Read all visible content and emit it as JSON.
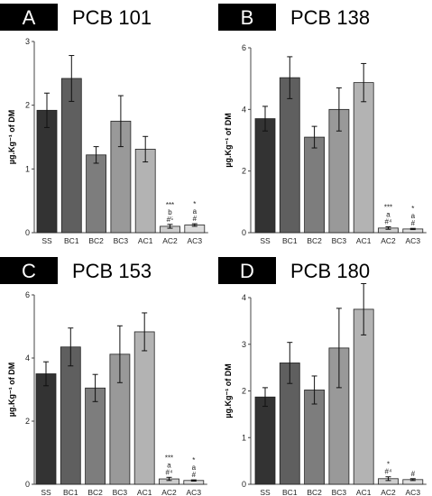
{
  "chart_data": [
    {
      "type": "bar",
      "panel_letter": "A",
      "title": "PCB 101",
      "ylabel": "µg.Kg⁻¹ of DM",
      "categories": [
        "SS",
        "BC1",
        "BC2",
        "BC3",
        "AC1",
        "AC2",
        "AC3"
      ],
      "values": [
        1.92,
        2.42,
        1.22,
        1.75,
        1.31,
        0.1,
        0.12
      ],
      "errors": [
        0.27,
        0.36,
        0.13,
        0.4,
        0.2,
        0.03,
        0.02
      ],
      "annotations": [
        [],
        [],
        [],
        [],
        [],
        [
          "***",
          "b",
          "#⁵"
        ],
        [
          "*",
          "a",
          "#"
        ]
      ],
      "ylim": [
        0,
        3
      ],
      "yticks": [
        "0",
        "1",
        "2",
        "3"
      ],
      "colors": [
        "#333333",
        "#5f5f5f",
        "#7d7d7d",
        "#999999",
        "#b3b3b3",
        "#cccccc",
        "#dcdcdc"
      ]
    },
    {
      "type": "bar",
      "panel_letter": "B",
      "title": "PCB 138",
      "ylabel": "µg.Kg⁻¹ of DM",
      "categories": [
        "SS",
        "BC1",
        "BC2",
        "BC3",
        "AC1",
        "AC2",
        "AC3"
      ],
      "values": [
        3.7,
        5.03,
        3.1,
        4.0,
        4.87,
        0.15,
        0.12
      ],
      "errors": [
        0.4,
        0.68,
        0.35,
        0.7,
        0.62,
        0.04,
        0.02
      ],
      "annotations": [
        [],
        [],
        [],
        [],
        [],
        [
          "***",
          "a",
          "#⁴"
        ],
        [
          "*",
          "a",
          "#"
        ]
      ],
      "ylim": [
        0,
        6
      ],
      "yticks": [
        "0",
        "2",
        "4",
        "6"
      ],
      "colors": [
        "#333333",
        "#5f5f5f",
        "#7d7d7d",
        "#999999",
        "#b3b3b3",
        "#cccccc",
        "#dcdcdc"
      ]
    },
    {
      "type": "bar",
      "panel_letter": "C",
      "title": "PCB 153",
      "ylabel": "µg.Kg⁻¹ of DM",
      "categories": [
        "SS",
        "BC1",
        "BC2",
        "BC3",
        "AC1",
        "AC2",
        "AC3"
      ],
      "values": [
        3.5,
        4.35,
        3.05,
        4.12,
        4.83,
        0.17,
        0.12
      ],
      "errors": [
        0.38,
        0.6,
        0.43,
        0.9,
        0.6,
        0.05,
        0.02
      ],
      "annotations": [
        [],
        [],
        [],
        [],
        [],
        [
          "***",
          "a",
          "#⁴"
        ],
        [
          "*",
          "a",
          "#"
        ]
      ],
      "ylim": [
        0,
        6
      ],
      "yticks": [
        "0",
        "2",
        "4",
        "6"
      ],
      "colors": [
        "#333333",
        "#5f5f5f",
        "#7d7d7d",
        "#999999",
        "#b3b3b3",
        "#cccccc",
        "#dcdcdc"
      ]
    },
    {
      "type": "bar",
      "panel_letter": "D",
      "title": "PCB 180",
      "ylabel": "µg.Kg⁻¹ of DM",
      "categories": [
        "SS",
        "BC1",
        "BC2",
        "BC3",
        "AC1",
        "AC2",
        "AC3"
      ],
      "values": [
        1.87,
        2.6,
        2.02,
        2.92,
        3.75,
        0.12,
        0.1
      ],
      "errors": [
        0.2,
        0.44,
        0.3,
        0.85,
        0.55,
        0.04,
        0.02
      ],
      "annotations": [
        [],
        [],
        [],
        [],
        [],
        [
          "*",
          "#⁴"
        ],
        [
          "#"
        ]
      ],
      "ylim": [
        0,
        4
      ],
      "yticks": [
        "0",
        "1",
        "2",
        "3",
        "4"
      ],
      "colors": [
        "#333333",
        "#5f5f5f",
        "#7d7d7d",
        "#999999",
        "#b3b3b3",
        "#cccccc",
        "#dcdcdc"
      ]
    }
  ]
}
